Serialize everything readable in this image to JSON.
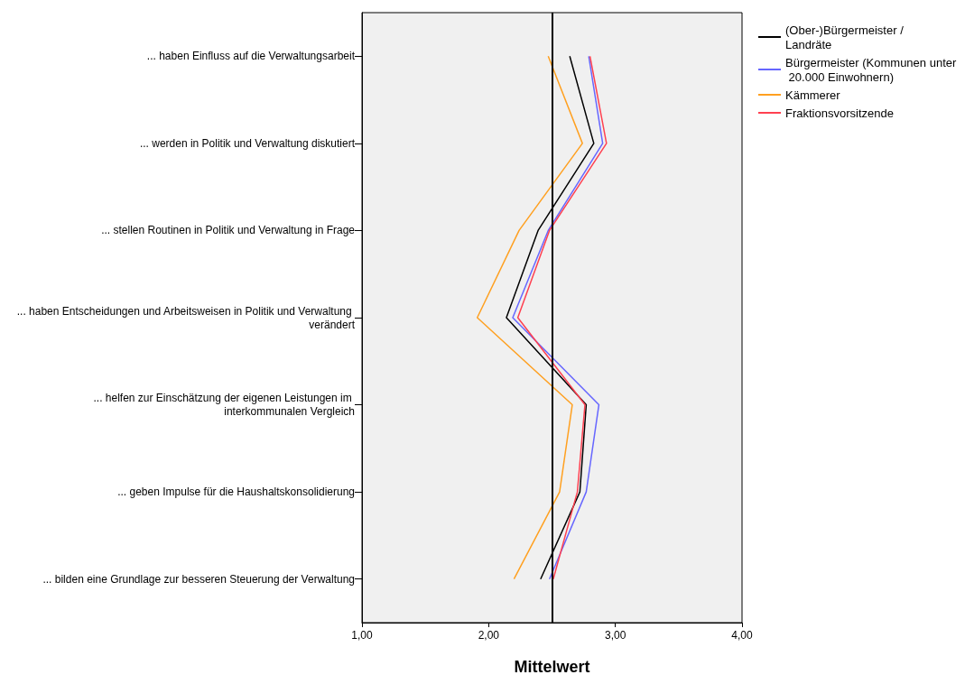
{
  "chart_data": {
    "type": "line",
    "orientation": "horizontal",
    "xlabel": "Mittelwert",
    "categories": [
      "... haben Einfluss auf die Verwaltungsarbeit",
      "... werden in Politik und Verwaltung diskutiert",
      "... stellen Routinen in Politik und Verwaltung in Frage",
      "... haben Entscheidungen und Arbeitsweisen in Politik und Verwaltung verändert",
      "... helfen zur Einschätzung der eigenen Leistungen im interkommunalen Vergleich",
      "... geben Impulse für die Haushaltskonsolidierung",
      "... bilden eine Grundlage zur besseren Steuerung der Verwaltung"
    ],
    "series": [
      {
        "name": "(Ober-)Bürgermeister / Landräte",
        "color": "#000000",
        "values": [
          2.64,
          2.83,
          2.39,
          2.14,
          2.77,
          2.72,
          2.41
        ]
      },
      {
        "name": "Bürgermeister (Kommunen unter 20.000 Einwohnern)",
        "color": "#6666ff",
        "values": [
          2.79,
          2.9,
          2.47,
          2.19,
          2.87,
          2.77,
          2.48
        ]
      },
      {
        "name": "Kämmerer",
        "color": "#ffa020",
        "values": [
          2.47,
          2.74,
          2.24,
          1.91,
          2.66,
          2.56,
          2.2
        ]
      },
      {
        "name": "Fraktionsvorsitzende",
        "color": "#ff4050",
        "values": [
          2.8,
          2.93,
          2.48,
          2.23,
          2.76,
          2.7,
          2.51
        ]
      }
    ],
    "xlim": [
      1,
      4
    ],
    "xticks": [
      {
        "value": 1,
        "label": "1,00"
      },
      {
        "value": 2,
        "label": "2,00"
      },
      {
        "value": 3,
        "label": "3,00"
      },
      {
        "value": 4,
        "label": "4,00"
      }
    ],
    "ref_lines": [
      {
        "axis": "x",
        "value": 2.5,
        "color": "#000000"
      }
    ],
    "grid": false,
    "legend": "top right",
    "marker": "none",
    "line_style": "solid"
  }
}
